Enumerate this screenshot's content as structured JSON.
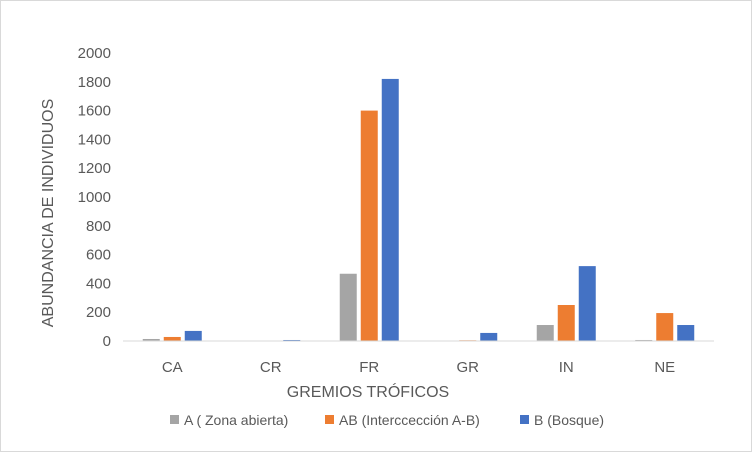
{
  "chart_data": {
    "type": "bar",
    "title": "",
    "xlabel": "GREMIOS TRÓFICOS",
    "ylabel": "ABUNDANCIA DE INDIVIDUOS",
    "categories": [
      "CA",
      "CR",
      "FR",
      "GR",
      "IN",
      "NE"
    ],
    "ylim": [
      0,
      2000
    ],
    "yticks": [
      0,
      200,
      400,
      600,
      800,
      1000,
      1200,
      1400,
      1600,
      1800,
      2000
    ],
    "grid": false,
    "legend": "bottom",
    "series": [
      {
        "name": "A ( Zona abierta)",
        "color": "#a5a5a5",
        "values": [
          14,
          0,
          467,
          0,
          111,
          7
        ]
      },
      {
        "name": "AB (Interccección A-B)",
        "color": "#ed7d31",
        "values": [
          28,
          0,
          1600,
          5,
          250,
          194
        ]
      },
      {
        "name": "B (Bosque)",
        "color": "#4472c4",
        "values": [
          70,
          7,
          1820,
          56,
          520,
          111
        ]
      }
    ]
  }
}
